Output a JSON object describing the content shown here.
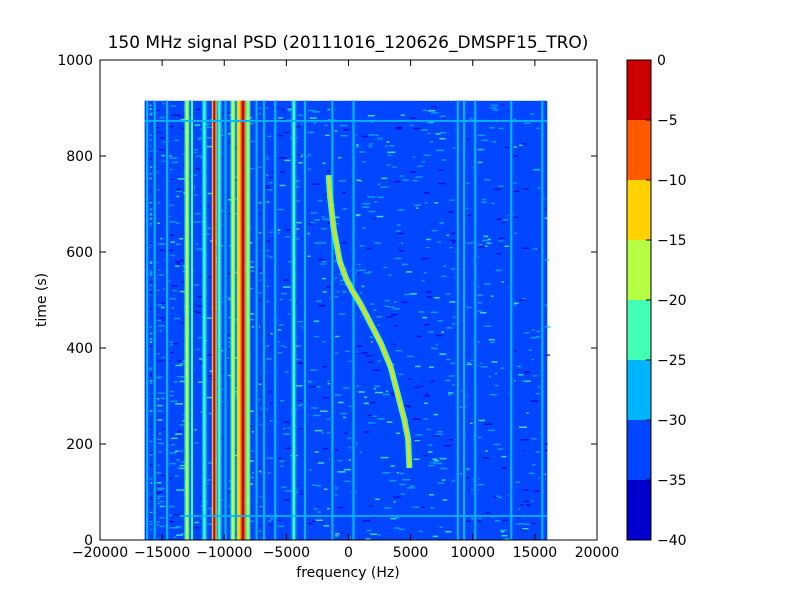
{
  "chart_data": {
    "type": "heatmap",
    "title": "150 MHz signal PSD (20111016_120626_DMSPF15_TRO)",
    "xlabel": "frequency (Hz)",
    "ylabel": "time (s)",
    "xlim": [
      -20000,
      20000
    ],
    "ylim": [
      0,
      1000
    ],
    "xticks": [
      -20000,
      -15000,
      -10000,
      -5000,
      0,
      5000,
      10000,
      15000,
      20000
    ],
    "xtick_labels": [
      "−20000",
      "−15000",
      "−10000",
      "−5000",
      "0",
      "5000",
      "10000",
      "15000",
      "20000"
    ],
    "yticks": [
      0,
      200,
      400,
      600,
      800,
      1000
    ],
    "ytick_labels": [
      "0",
      "200",
      "400",
      "600",
      "800",
      "1000"
    ],
    "data_extent": {
      "freq_min": -16400,
      "freq_max": 16000,
      "time_min": 0,
      "time_max": 915
    },
    "background_level": -33,
    "colorbar": {
      "levels": [
        -40,
        -35,
        -30,
        -25,
        -20,
        -15,
        -10,
        -5,
        0
      ],
      "tick_labels": [
        "−40",
        "−35",
        "−30",
        "−25",
        "−20",
        "−15",
        "−10",
        "−5",
        "0"
      ],
      "colors": [
        "#0000cd",
        "#0046ff",
        "#00b4ff",
        "#43ffb4",
        "#b4ff43",
        "#ffd200",
        "#ff5a00",
        "#cd0000"
      ]
    },
    "lines": [
      {
        "freq": -16200,
        "level": -28
      },
      {
        "freq": -15600,
        "level": -28
      },
      {
        "freq": -14600,
        "level": -28
      },
      {
        "freq": -13000,
        "level": -16
      },
      {
        "freq": -12600,
        "level": -25
      },
      {
        "freq": -11600,
        "level": -24
      },
      {
        "freq": -10800,
        "level": -5
      },
      {
        "freq": -10400,
        "level": -22
      },
      {
        "freq": -9900,
        "level": -28
      },
      {
        "freq": -9300,
        "level": -18
      },
      {
        "freq": -8800,
        "level": -14
      },
      {
        "freq": -8500,
        "level": -3
      },
      {
        "freq": -8100,
        "level": -18
      },
      {
        "freq": -7400,
        "level": -28
      },
      {
        "freq": -6800,
        "level": -28
      },
      {
        "freq": -5900,
        "level": -28
      },
      {
        "freq": -4400,
        "level": -24
      },
      {
        "freq": -3500,
        "level": -28
      },
      {
        "freq": -1300,
        "level": -28
      },
      {
        "freq": 400,
        "level": -26
      },
      {
        "freq": 8800,
        "level": -28
      },
      {
        "freq": 9300,
        "level": -26
      },
      {
        "freq": 10200,
        "level": -28
      },
      {
        "freq": 13100,
        "level": -27
      },
      {
        "freq": 15600,
        "level": -28
      }
    ],
    "doppler_trace": [
      [
        -1600,
        760
      ],
      [
        -1500,
        720
      ],
      [
        -1200,
        650
      ],
      [
        -700,
        580
      ],
      [
        -200,
        545
      ],
      [
        300,
        520
      ],
      [
        1000,
        490
      ],
      [
        1800,
        450
      ],
      [
        2600,
        410
      ],
      [
        3400,
        360
      ],
      [
        4000,
        300
      ],
      [
        4500,
        250
      ],
      [
        4800,
        210
      ],
      [
        4900,
        150
      ]
    ],
    "horizontal_lines": [
      {
        "time": 873,
        "freq_range": [
          -16400,
          16000
        ],
        "level": -28
      },
      {
        "time": 50,
        "freq_range": [
          -13600,
          16000
        ],
        "level": -27
      }
    ]
  }
}
